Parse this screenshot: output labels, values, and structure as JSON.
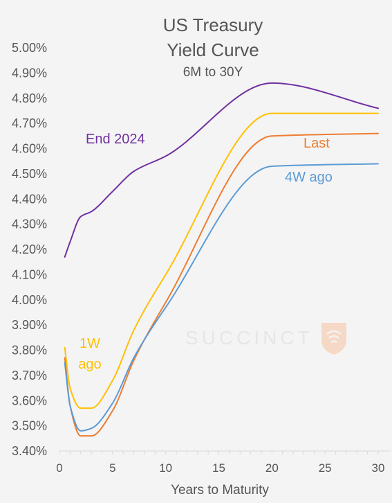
{
  "chart_data": {
    "type": "line",
    "title": [
      "US Treasury",
      "Yield Curve"
    ],
    "subtitle": "6M to 30Y",
    "xlabel": "Years to Maturity",
    "ylabel": "",
    "xlim": [
      0,
      30
    ],
    "ylim": [
      3.4,
      5.0
    ],
    "x_ticks": [
      "0",
      "5",
      "10",
      "15",
      "20",
      "25",
      "30"
    ],
    "y_ticks": [
      "3.40%",
      "3.50%",
      "3.60%",
      "3.70%",
      "3.80%",
      "3.90%",
      "4.00%",
      "4.10%",
      "4.20%",
      "4.30%",
      "4.40%",
      "4.50%",
      "4.60%",
      "4.70%",
      "4.80%",
      "4.90%",
      "5.00%"
    ],
    "grid": false,
    "series": [
      {
        "name": "End 2024",
        "color": "#7030a0",
        "label_lines": [
          "End 2024"
        ],
        "x": [
          0.5,
          1,
          2,
          3,
          5,
          7,
          10,
          20,
          30
        ],
        "values": [
          4.17,
          4.23,
          4.33,
          4.35,
          4.43,
          4.51,
          4.57,
          4.86,
          4.76
        ]
      },
      {
        "name": "1W ago",
        "color": "#ffc000",
        "label_lines": [
          "1W",
          "ago"
        ],
        "x": [
          0.5,
          1,
          2,
          3,
          5,
          7,
          10,
          20,
          30
        ],
        "values": [
          3.81,
          3.65,
          3.57,
          3.57,
          3.68,
          3.88,
          4.1,
          4.74,
          4.74
        ]
      },
      {
        "name": "Last",
        "color": "#ed7d31",
        "label_lines": [
          "Last"
        ],
        "x": [
          0.5,
          1,
          2,
          3,
          5,
          7,
          10,
          20,
          30
        ],
        "values": [
          3.77,
          3.58,
          3.46,
          3.46,
          3.56,
          3.76,
          3.99,
          4.65,
          4.66
        ]
      },
      {
        "name": "4W ago",
        "color": "#5b9bd5",
        "label_lines": [
          "4W ago"
        ],
        "x": [
          0.5,
          1,
          2,
          3,
          5,
          7,
          10,
          20,
          30
        ],
        "values": [
          3.75,
          3.58,
          3.48,
          3.49,
          3.59,
          3.77,
          3.97,
          4.53,
          4.54
        ]
      }
    ]
  },
  "watermark": {
    "text": "SUCCINCT",
    "icon": "wifi-shield-icon"
  }
}
